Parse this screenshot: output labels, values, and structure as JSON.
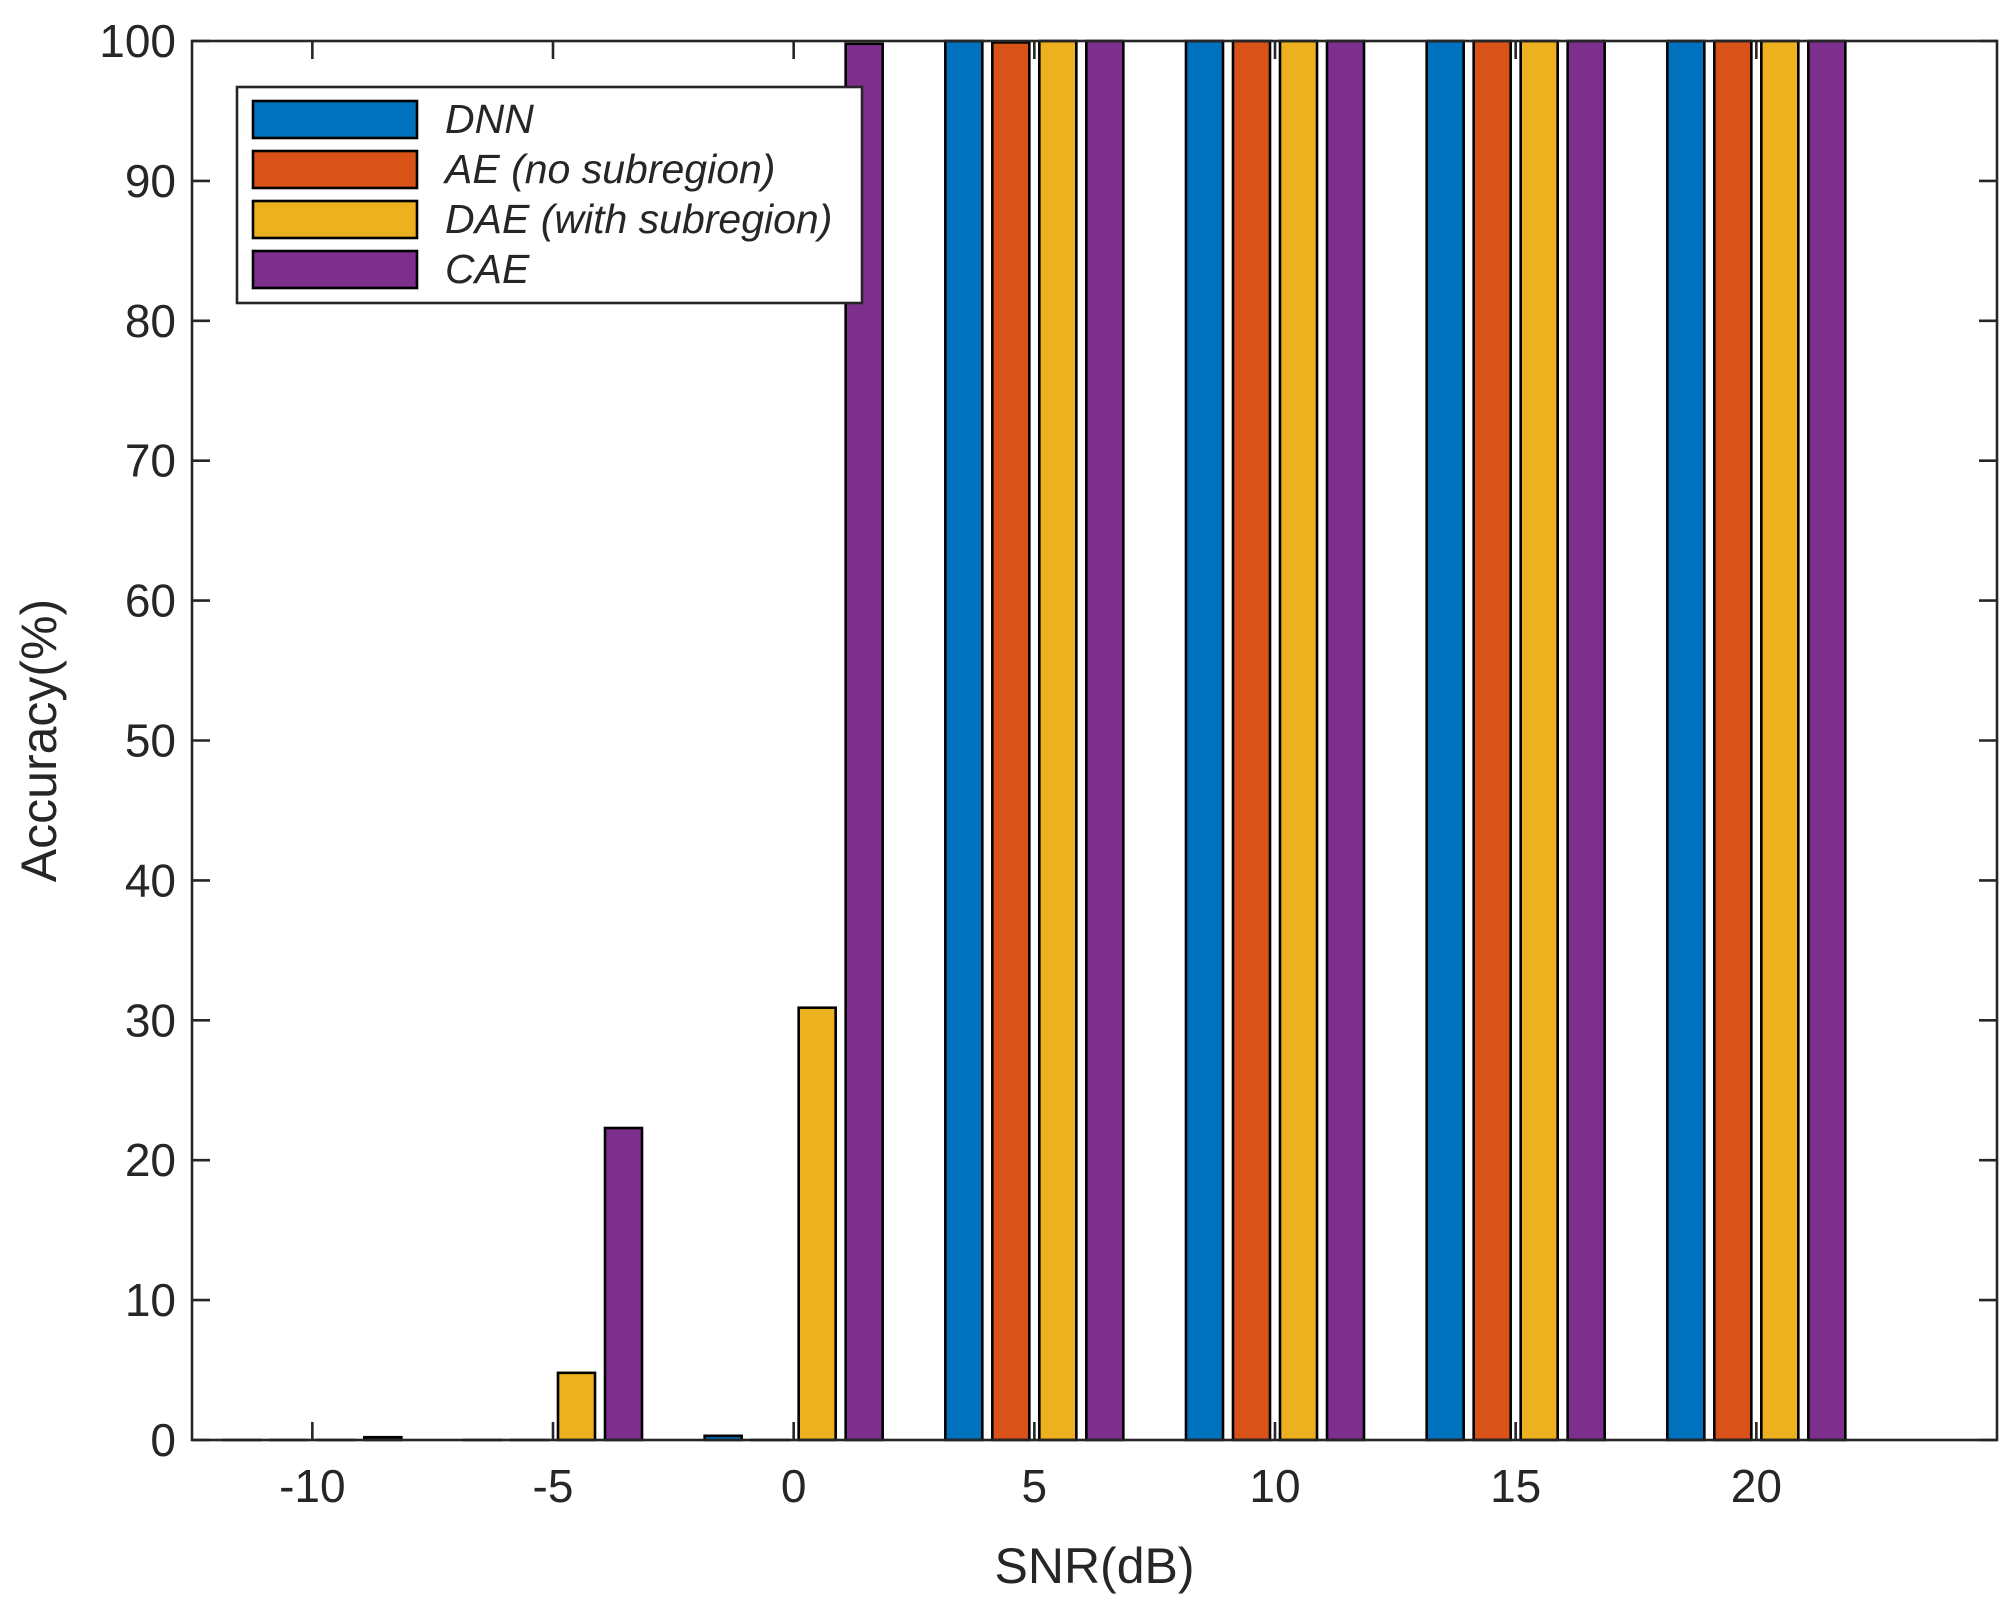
{
  "chart_data": {
    "type": "bar",
    "title": "",
    "xlabel": "SNR(dB)",
    "ylabel": "Accuracy(%)",
    "categories": [
      "-10",
      "-5",
      "0",
      "5",
      "10",
      "15",
      "20"
    ],
    "ylim": [
      0,
      100
    ],
    "yticks": [
      "0",
      "10",
      "20",
      "30",
      "40",
      "50",
      "60",
      "70",
      "80",
      "90",
      "100"
    ],
    "grid": false,
    "legend_position": "top-left",
    "series": [
      {
        "name": "DNN",
        "color": "#0072BD",
        "values": [
          0,
          0,
          0.3,
          100,
          100,
          100,
          100
        ]
      },
      {
        "name": "AE (no subregion)",
        "color": "#D95319",
        "values": [
          0,
          0,
          0,
          99.9,
          100,
          100,
          100
        ]
      },
      {
        "name": "DAE (with subregion)",
        "color": "#EDB120",
        "values": [
          0,
          4.8,
          30.9,
          100,
          100,
          100,
          100
        ]
      },
      {
        "name": "CAE",
        "color": "#7E2F8E",
        "values": [
          0.2,
          22.3,
          99.8,
          100,
          100,
          100,
          100
        ]
      }
    ]
  }
}
